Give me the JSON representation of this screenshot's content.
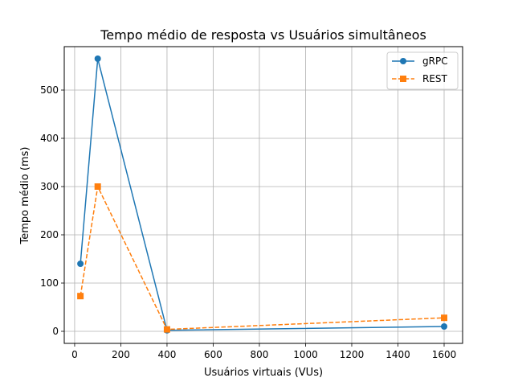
{
  "chart_data": {
    "type": "line",
    "title": "Tempo médio de resposta vs Usuários simultâneos",
    "xlabel": "Usuários virtuais (VUs)",
    "ylabel": "Tempo médio (ms)",
    "xlim": [
      -45,
      1680
    ],
    "ylim": [
      -25,
      590
    ],
    "xticks": [
      0,
      200,
      400,
      600,
      800,
      1000,
      1200,
      1400,
      1600
    ],
    "yticks": [
      0,
      100,
      200,
      300,
      400,
      500
    ],
    "grid": true,
    "legend_position": "top-right",
    "series": [
      {
        "name": "gRPC",
        "color": "#1f77b4",
        "marker": "circle",
        "linestyle": "solid",
        "x": [
          25,
          100,
          400,
          1600
        ],
        "y": [
          140,
          565,
          2,
          10
        ]
      },
      {
        "name": "REST",
        "color": "#ff7f0e",
        "marker": "square",
        "linestyle": "dashed",
        "x": [
          25,
          100,
          400,
          1600
        ],
        "y": [
          73,
          300,
          4,
          28
        ]
      }
    ]
  }
}
